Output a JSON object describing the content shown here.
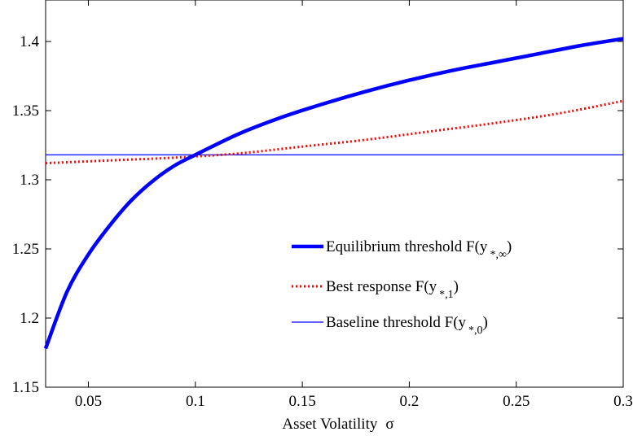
{
  "chart_data": {
    "type": "line",
    "title": "",
    "xlabel": "Asset Volatility",
    "xlabel_symbol": "σ",
    "ylabel": "",
    "xlim": [
      0.03,
      0.3
    ],
    "ylim": [
      1.15,
      1.43
    ],
    "x_ticks": [
      0.05,
      0.1,
      0.15,
      0.2,
      0.25,
      0.3
    ],
    "x_tick_labels": [
      "0.05",
      "0.1",
      "0.15",
      "0.2",
      "0.25",
      "0.3"
    ],
    "y_ticks": [
      1.15,
      1.2,
      1.25,
      1.3,
      1.35,
      1.4
    ],
    "y_tick_labels": [
      "1.15",
      "1.2",
      "1.25",
      "1.3",
      "1.35",
      "1.4"
    ],
    "grid": false,
    "legend_placement": "lower-right",
    "series": [
      {
        "name": "Equilibrium threshold F(y *,∞)",
        "legend_main": "Equilibrium threshold F(y",
        "legend_sub": "*,∞",
        "legend_close": ")",
        "color": "#0000ff",
        "style": "solid-thick",
        "x": [
          0.03,
          0.04,
          0.05,
          0.06,
          0.07,
          0.08,
          0.09,
          0.1,
          0.12,
          0.14,
          0.16,
          0.18,
          0.2,
          0.22,
          0.24,
          0.26,
          0.28,
          0.3
        ],
        "y": [
          1.178,
          1.219,
          1.246,
          1.267,
          1.285,
          1.299,
          1.31,
          1.318,
          1.333,
          1.345,
          1.355,
          1.364,
          1.372,
          1.379,
          1.385,
          1.391,
          1.397,
          1.402
        ]
      },
      {
        "name": "Best response F(y *,1)",
        "legend_main": "Best response F(y",
        "legend_sub": "*,1",
        "legend_close": ")",
        "color": "#ff0000",
        "style": "dotted",
        "x": [
          0.03,
          0.06,
          0.09,
          0.12,
          0.15,
          0.18,
          0.21,
          0.24,
          0.27,
          0.3
        ],
        "y": [
          1.312,
          1.314,
          1.316,
          1.319,
          1.324,
          1.329,
          1.335,
          1.341,
          1.348,
          1.357
        ]
      },
      {
        "name": "Baseline threshold F(y *,0)",
        "legend_main": "Baseline threshold F(y",
        "legend_sub": "*,0",
        "legend_close": ")",
        "color": "#0000ff",
        "style": "solid-thin",
        "x": [
          0.03,
          0.3
        ],
        "y": [
          1.318,
          1.318
        ]
      }
    ]
  }
}
